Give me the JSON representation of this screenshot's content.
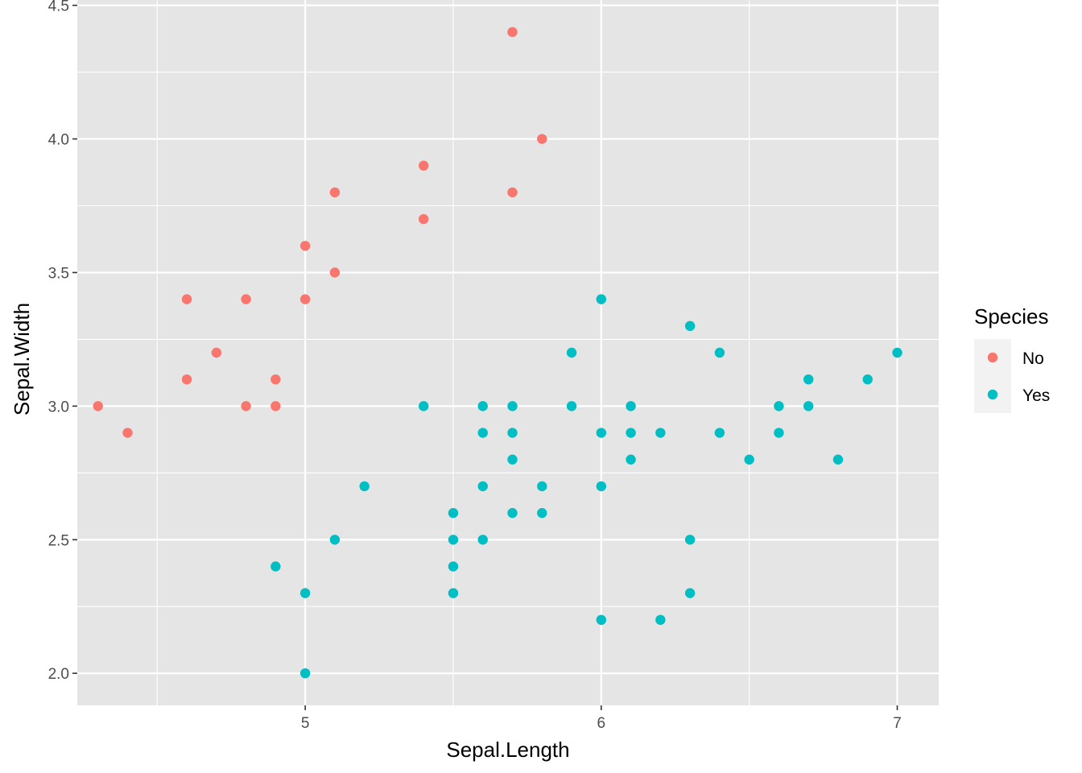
{
  "chart_data": {
    "type": "scatter",
    "title": "",
    "xlabel": "Sepal.Length",
    "ylabel": "Sepal.Width",
    "xlim": [
      4.23,
      7.14
    ],
    "ylim": [
      1.88,
      4.52
    ],
    "x_ticks": [
      5,
      6,
      7
    ],
    "x_tick_labels": [
      "5",
      "6",
      "7"
    ],
    "y_ticks": [
      2.0,
      2.5,
      3.0,
      3.5,
      4.0,
      4.5
    ],
    "y_tick_labels": [
      "2.0",
      "2.5",
      "3.0",
      "3.5",
      "4.0",
      "4.5"
    ],
    "x_minor_ticks": [
      4.5,
      5.5,
      6.5
    ],
    "y_minor_ticks": [
      2.25,
      2.75,
      3.25,
      3.75,
      4.25
    ],
    "grid": true,
    "panel_background": "#e5e5e5",
    "grid_color": "#ffffff",
    "legend": {
      "title": "Species",
      "placement": "right",
      "entries": [
        {
          "label": "No",
          "color": "#f8766d"
        },
        {
          "label": "Yes",
          "color": "#00bfc4"
        }
      ]
    },
    "series": [
      {
        "name": "No",
        "color": "#f8766d",
        "points": [
          [
            5.7,
            4.4
          ],
          [
            5.8,
            4.0
          ],
          [
            5.4,
            3.9
          ],
          [
            5.1,
            3.8
          ],
          [
            5.7,
            3.8
          ],
          [
            5.4,
            3.7
          ],
          [
            5.0,
            3.6
          ],
          [
            5.1,
            3.5
          ],
          [
            4.6,
            3.4
          ],
          [
            4.8,
            3.4
          ],
          [
            5.0,
            3.4
          ],
          [
            4.7,
            3.2
          ],
          [
            4.6,
            3.1
          ],
          [
            4.9,
            3.1
          ],
          [
            4.3,
            3.0
          ],
          [
            4.8,
            3.0
          ],
          [
            4.9,
            3.0
          ],
          [
            4.4,
            2.9
          ]
        ]
      },
      {
        "name": "Yes",
        "color": "#00bfc4",
        "points": [
          [
            6.0,
            3.4
          ],
          [
            6.3,
            3.3
          ],
          [
            5.9,
            3.2
          ],
          [
            6.4,
            3.2
          ],
          [
            7.0,
            3.2
          ],
          [
            6.7,
            3.1
          ],
          [
            6.9,
            3.1
          ],
          [
            5.4,
            3.0
          ],
          [
            5.6,
            3.0
          ],
          [
            5.7,
            3.0
          ],
          [
            5.9,
            3.0
          ],
          [
            6.1,
            3.0
          ],
          [
            6.6,
            3.0
          ],
          [
            6.7,
            3.0
          ],
          [
            5.6,
            2.9
          ],
          [
            5.7,
            2.9
          ],
          [
            6.0,
            2.9
          ],
          [
            6.1,
            2.9
          ],
          [
            6.2,
            2.9
          ],
          [
            6.4,
            2.9
          ],
          [
            6.6,
            2.9
          ],
          [
            5.7,
            2.8
          ],
          [
            6.1,
            2.8
          ],
          [
            6.5,
            2.8
          ],
          [
            6.8,
            2.8
          ],
          [
            5.2,
            2.7
          ],
          [
            5.6,
            2.7
          ],
          [
            5.8,
            2.7
          ],
          [
            6.0,
            2.7
          ],
          [
            5.5,
            2.6
          ],
          [
            5.7,
            2.6
          ],
          [
            5.8,
            2.6
          ],
          [
            5.1,
            2.5
          ],
          [
            5.5,
            2.5
          ],
          [
            5.6,
            2.5
          ],
          [
            6.3,
            2.5
          ],
          [
            4.9,
            2.4
          ],
          [
            5.5,
            2.4
          ],
          [
            5.0,
            2.3
          ],
          [
            5.5,
            2.3
          ],
          [
            6.3,
            2.3
          ],
          [
            6.0,
            2.2
          ],
          [
            6.2,
            2.2
          ],
          [
            5.0,
            2.0
          ]
        ]
      }
    ]
  }
}
